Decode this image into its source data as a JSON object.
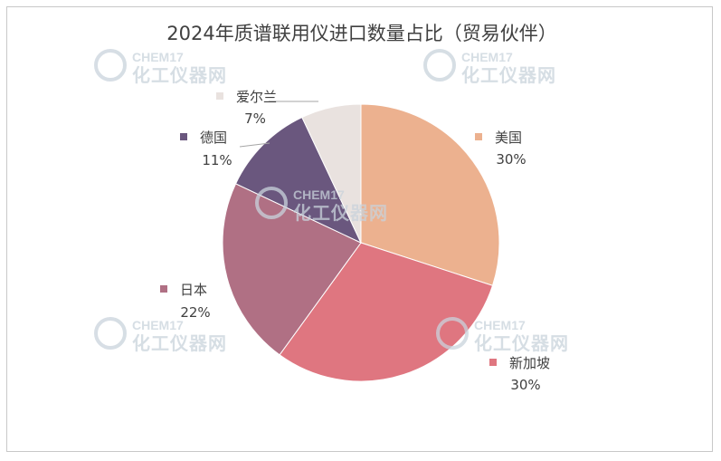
{
  "chart_data": {
    "type": "pie",
    "title": "2024年质谱联用仪进口数量占比（贸易伙伴）",
    "slices": [
      {
        "name": "美国",
        "value": 30,
        "label": "30%",
        "color": "#ecb18f"
      },
      {
        "name": "新加坡",
        "value": 30,
        "label": "30%",
        "color": "#df7680"
      },
      {
        "name": "日本",
        "value": 22,
        "label": "22%",
        "color": "#b07084"
      },
      {
        "name": "德国",
        "value": 11,
        "label": "11%",
        "color": "#6a577e"
      },
      {
        "name": "爱尔兰",
        "value": 7,
        "label": "7%",
        "color": "#e9e2df"
      }
    ],
    "start_angle_deg": 0,
    "direction": "clockwise"
  },
  "watermark": {
    "brand": "CHEM17",
    "name": "化工仪器网",
    "icon": "globe-e-logo-icon"
  }
}
